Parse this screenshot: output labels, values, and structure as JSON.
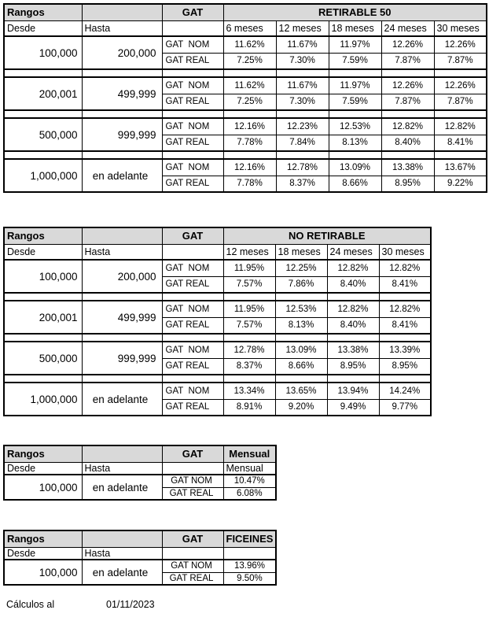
{
  "styles": {
    "header_bg": "#d9d9d9",
    "border_color": "#000000",
    "text_color": "#000000",
    "page_bg": "#ffffff"
  },
  "footer": {
    "label": "Cálculos al",
    "date": "01/11/2023"
  },
  "tables": [
    {
      "id": "retirable-50",
      "corner_label": "Rangos",
      "gat_label": "GAT",
      "product_label": "RETIRABLE 50",
      "desde_label": "Desde",
      "hasta_label": "Hasta",
      "term_headers": [
        "6 meses",
        "12 meses",
        "18 meses",
        "24 meses",
        "30 meses"
      ],
      "blocks": [
        {
          "desde": "100,000",
          "hasta": "200,000",
          "rows": [
            {
              "label": "GAT  NOM",
              "values": [
                "11.62%",
                "11.67%",
                "11.97%",
                "12.26%",
                "12.26%"
              ]
            },
            {
              "label": "GAT REAL",
              "values": [
                "7.25%",
                "7.30%",
                "7.59%",
                "7.87%",
                "7.87%"
              ]
            }
          ]
        },
        {
          "desde": "200,001",
          "hasta": "499,999",
          "rows": [
            {
              "label": "GAT  NOM",
              "values": [
                "11.62%",
                "11.67%",
                "11.97%",
                "12.26%",
                "12.26%"
              ]
            },
            {
              "label": "GAT REAL",
              "values": [
                "7.25%",
                "7.30%",
                "7.59%",
                "7.87%",
                "7.87%"
              ]
            }
          ]
        },
        {
          "desde": "500,000",
          "hasta": "999,999",
          "rows": [
            {
              "label": "GAT  NOM",
              "values": [
                "12.16%",
                "12.23%",
                "12.53%",
                "12.82%",
                "12.82%"
              ]
            },
            {
              "label": "GAT REAL",
              "values": [
                "7.78%",
                "7.84%",
                "8.13%",
                "8.40%",
                "8.41%"
              ]
            }
          ]
        },
        {
          "desde": "1,000,000",
          "hasta": "en adelante",
          "rows": [
            {
              "label": "GAT  NOM",
              "values": [
                "12.16%",
                "12.78%",
                "13.09%",
                "13.38%",
                "13.67%"
              ]
            },
            {
              "label": "GAT REAL",
              "values": [
                "7.78%",
                "8.37%",
                "8.66%",
                "8.95%",
                "9.22%"
              ]
            }
          ]
        }
      ]
    },
    {
      "id": "no-retirable",
      "corner_label": "Rangos",
      "gat_label": "GAT",
      "product_label": "NO RETIRABLE",
      "desde_label": "Desde",
      "hasta_label": "Hasta",
      "term_headers": [
        "12 meses",
        "18 meses",
        "24 meses",
        "30 meses"
      ],
      "blocks": [
        {
          "desde": "100,000",
          "hasta": "200,000",
          "rows": [
            {
              "label": "GAT  NOM",
              "values": [
                "11.95%",
                "12.25%",
                "12.82%",
                "12.82%"
              ]
            },
            {
              "label": "GAT REAL",
              "values": [
                "7.57%",
                "7.86%",
                "8.40%",
                "8.41%"
              ]
            }
          ]
        },
        {
          "desde": "200,001",
          "hasta": "499,999",
          "rows": [
            {
              "label": "GAT  NOM",
              "values": [
                "11.95%",
                "12.53%",
                "12.82%",
                "12.82%"
              ]
            },
            {
              "label": "GAT REAL",
              "values": [
                "7.57%",
                "8.13%",
                "8.40%",
                "8.41%"
              ]
            }
          ]
        },
        {
          "desde": "500,000",
          "hasta": "999,999",
          "rows": [
            {
              "label": "GAT  NOM",
              "values": [
                "12.78%",
                "13.09%",
                "13.38%",
                "13.39%"
              ]
            },
            {
              "label": "GAT REAL",
              "values": [
                "8.37%",
                "8.66%",
                "8.95%",
                "8.95%"
              ]
            }
          ]
        },
        {
          "desde": "1,000,000",
          "hasta": "en adelante",
          "rows": [
            {
              "label": "GAT  NOM",
              "values": [
                "13.34%",
                "13.65%",
                "13.94%",
                "14.24%"
              ]
            },
            {
              "label": "GAT REAL",
              "values": [
                "8.91%",
                "9.20%",
                "9.49%",
                "9.77%"
              ]
            }
          ]
        }
      ]
    },
    {
      "id": "mensual",
      "corner_label": "Rangos",
      "gat_label": "GAT",
      "product_label": "Mensual",
      "desde_label": "Desde",
      "hasta_label": "Hasta",
      "term_headers": [
        "Mensual"
      ],
      "blocks": [
        {
          "desde": "100,000",
          "hasta": "en adelante",
          "rows": [
            {
              "label": "GAT NOM",
              "values": [
                "10.47%"
              ]
            },
            {
              "label": "GAT REAL",
              "values": [
                "6.08%"
              ]
            }
          ]
        }
      ]
    },
    {
      "id": "ficeines",
      "corner_label": "Rangos",
      "gat_label": "GAT",
      "product_label": "FICEINES",
      "desde_label": "Desde",
      "hasta_label": "Hasta",
      "term_headers": [
        ""
      ],
      "blocks": [
        {
          "desde": "100,000",
          "hasta": "en adelante",
          "rows": [
            {
              "label": "GAT NOM",
              "values": [
                "13.96%"
              ]
            },
            {
              "label": "GAT REAL",
              "values": [
                "9.50%"
              ]
            }
          ]
        }
      ]
    }
  ]
}
